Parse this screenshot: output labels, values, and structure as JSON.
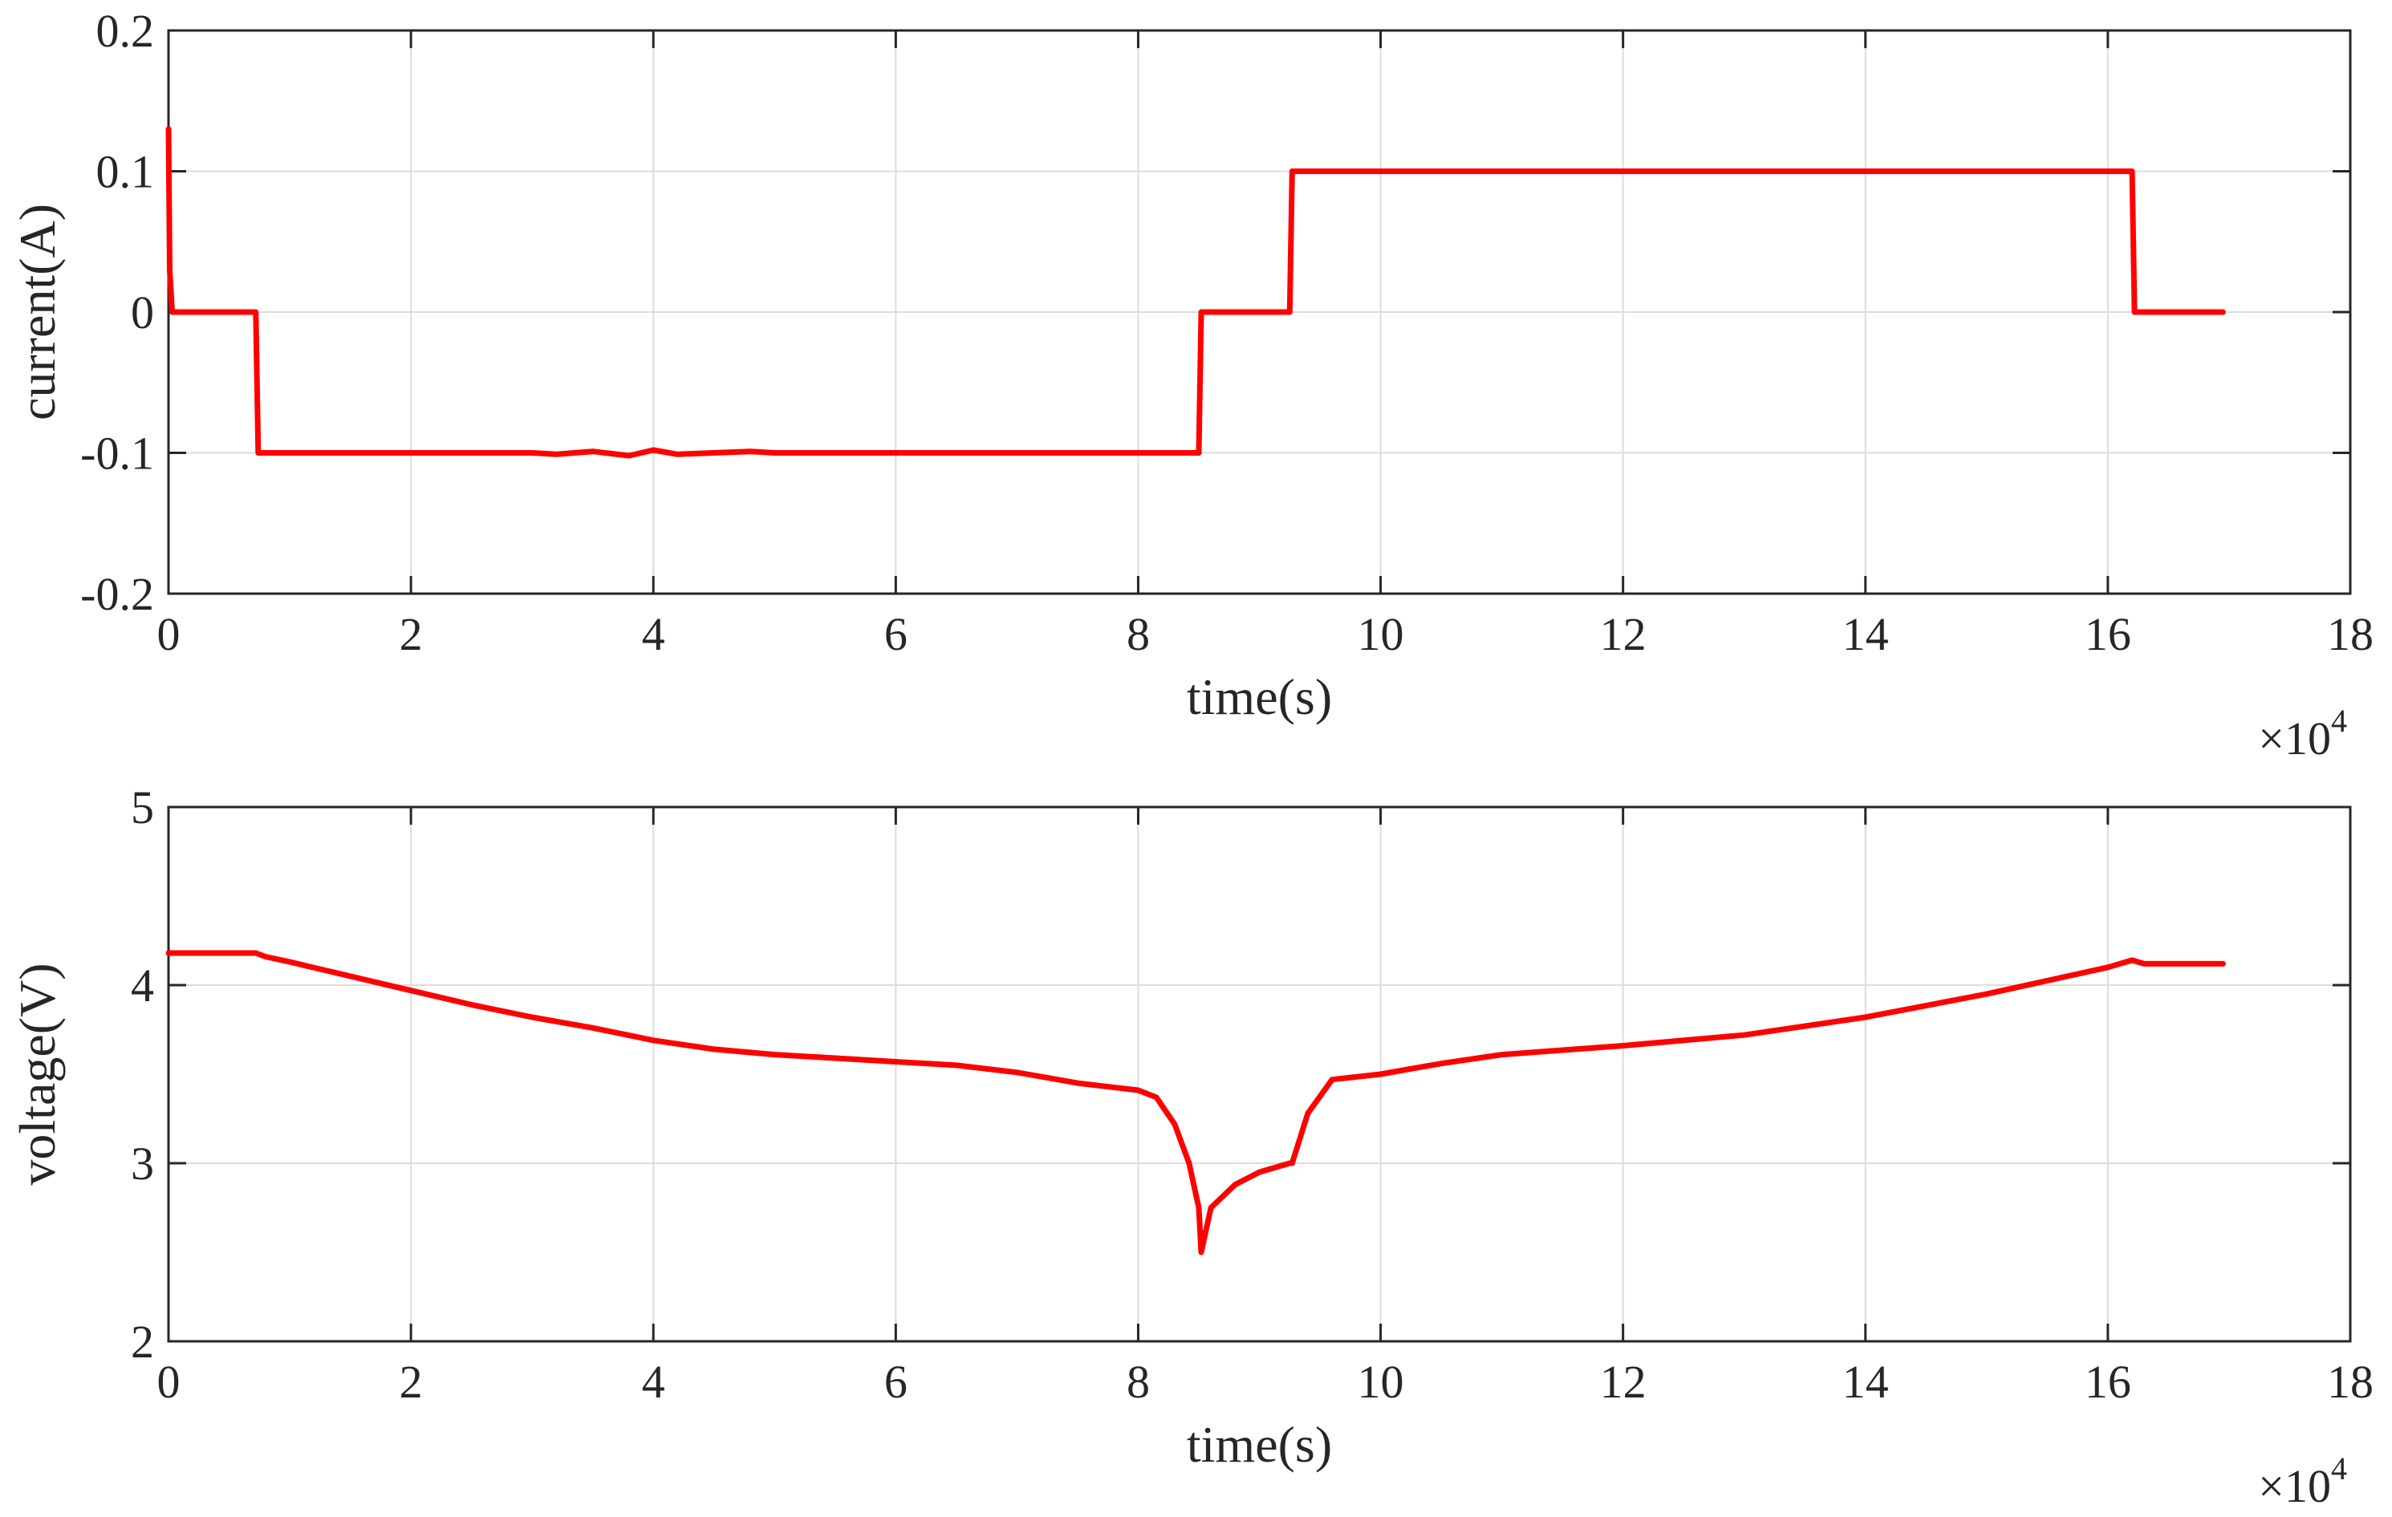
{
  "colors": {
    "line": "#ff0000",
    "axis": "#262626",
    "grid": "#dcdcdc",
    "background": "#ffffff"
  },
  "chart_data": [
    {
      "type": "line",
      "title": "",
      "xlabel": "time(s)",
      "ylabel": "current(A)",
      "x_multiplier_label": {
        "base": "×10",
        "exp": "4"
      },
      "xlim": [
        0,
        18
      ],
      "ylim": [
        -0.2,
        0.2
      ],
      "xticks": [
        0,
        2,
        4,
        6,
        8,
        10,
        12,
        14,
        16,
        18
      ],
      "yticks": [
        -0.2,
        -0.1,
        0,
        0.1,
        0.2
      ],
      "xtick_labels": [
        "0",
        "2",
        "4",
        "6",
        "8",
        "10",
        "12",
        "14",
        "16",
        "18"
      ],
      "ytick_labels": [
        "-0.2",
        "-0.1",
        "0",
        "0.1",
        "0.2"
      ],
      "grid": true,
      "legend": "none",
      "series": [
        {
          "color": "#ff0000",
          "x": [
            0,
            0.01,
            0.03,
            0.72,
            0.74,
            2.0,
            3.0,
            3.2,
            3.5,
            3.8,
            4.0,
            4.2,
            4.5,
            4.8,
            5.0,
            5.5,
            6.0,
            7.0,
            8.5,
            8.52,
            9.25,
            9.27,
            10.0,
            12.0,
            14.0,
            16.2,
            16.22,
            16.95
          ],
          "y": [
            0.13,
            0.03,
            0.0,
            0.0,
            -0.1,
            -0.1,
            -0.1,
            -0.101,
            -0.099,
            -0.102,
            -0.098,
            -0.101,
            -0.1,
            -0.099,
            -0.1,
            -0.1,
            -0.1,
            -0.1,
            -0.1,
            0.0,
            0.0,
            0.1,
            0.1,
            0.1,
            0.1,
            0.1,
            0.0,
            0.0
          ]
        }
      ]
    },
    {
      "type": "line",
      "title": "",
      "xlabel": "time(s)",
      "ylabel": "voltage(V)",
      "x_multiplier_label": {
        "base": "×10",
        "exp": "4"
      },
      "xlim": [
        0,
        18
      ],
      "ylim": [
        2,
        5
      ],
      "xticks": [
        0,
        2,
        4,
        6,
        8,
        10,
        12,
        14,
        16,
        18
      ],
      "yticks": [
        2,
        3,
        4,
        5
      ],
      "xtick_labels": [
        "0",
        "2",
        "4",
        "6",
        "8",
        "10",
        "12",
        "14",
        "16",
        "18"
      ],
      "ytick_labels": [
        "2",
        "3",
        "4",
        "5"
      ],
      "grid": true,
      "legend": "none",
      "series": [
        {
          "color": "#ff0000",
          "x": [
            0,
            0.72,
            0.8,
            1.0,
            1.5,
            2.0,
            2.5,
            3.0,
            3.5,
            4.0,
            4.5,
            5.0,
            5.5,
            6.0,
            6.5,
            7.0,
            7.5,
            8.0,
            8.15,
            8.3,
            8.42,
            8.5,
            8.52,
            8.6,
            8.8,
            9.0,
            9.25,
            9.27,
            9.4,
            9.6,
            10.0,
            10.5,
            11.0,
            12.0,
            13.0,
            14.0,
            15.0,
            16.0,
            16.2,
            16.3,
            16.95
          ],
          "y": [
            4.18,
            4.18,
            4.16,
            4.13,
            4.05,
            3.97,
            3.89,
            3.82,
            3.76,
            3.69,
            3.64,
            3.61,
            3.59,
            3.57,
            3.55,
            3.51,
            3.45,
            3.41,
            3.37,
            3.22,
            3.0,
            2.75,
            2.5,
            2.75,
            2.88,
            2.95,
            3.0,
            3.0,
            3.28,
            3.47,
            3.5,
            3.56,
            3.61,
            3.66,
            3.72,
            3.82,
            3.95,
            4.1,
            4.14,
            4.12,
            4.12
          ]
        }
      ]
    }
  ]
}
